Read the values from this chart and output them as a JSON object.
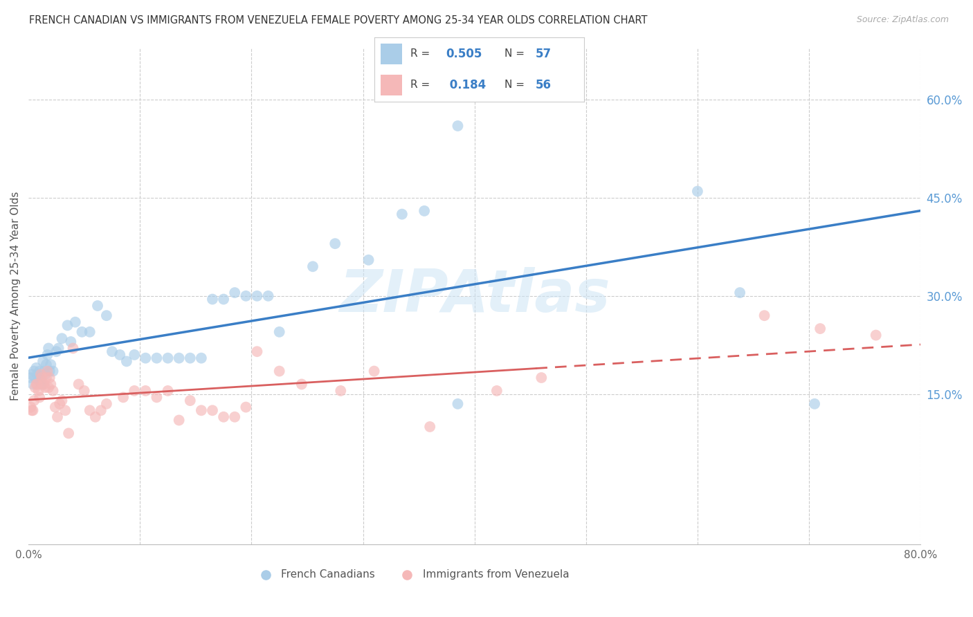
{
  "title": "FRENCH CANADIAN VS IMMIGRANTS FROM VENEZUELA FEMALE POVERTY AMONG 25-34 YEAR OLDS CORRELATION CHART",
  "source": "Source: ZipAtlas.com",
  "ylabel": "Female Poverty Among 25-34 Year Olds",
  "watermark": "ZIPAtlas",
  "xlim": [
    0.0,
    0.8
  ],
  "ylim": [
    -0.08,
    0.68
  ],
  "xtick_positions": [
    0.0,
    0.1,
    0.2,
    0.3,
    0.4,
    0.5,
    0.6,
    0.7,
    0.8
  ],
  "xtick_labels": [
    "0.0%",
    "",
    "",
    "",
    "",
    "",
    "",
    "",
    "80.0%"
  ],
  "ytick_vals_right": [
    0.15,
    0.3,
    0.45,
    0.6
  ],
  "ytick_labels_right": [
    "15.0%",
    "30.0%",
    "45.0%",
    "60.0%"
  ],
  "blue_R": "0.505",
  "blue_N": "57",
  "pink_R": "0.184",
  "pink_N": "56",
  "blue_scatter_color": "#aacde8",
  "pink_scatter_color": "#f5b8b8",
  "blue_line_color": "#3a7ec6",
  "pink_line_color": "#d95f5f",
  "grid_color": "#cccccc",
  "title_color": "#333333",
  "right_tick_color": "#5b9bd5",
  "blue_x": [
    0.002,
    0.003,
    0.004,
    0.005,
    0.006,
    0.007,
    0.008,
    0.009,
    0.01,
    0.011,
    0.012,
    0.013,
    0.014,
    0.015,
    0.016,
    0.017,
    0.018,
    0.019,
    0.02,
    0.022,
    0.025,
    0.027,
    0.03,
    0.035,
    0.038,
    0.042,
    0.048,
    0.055,
    0.062,
    0.07,
    0.075,
    0.082,
    0.088,
    0.095,
    0.105,
    0.115,
    0.125,
    0.135,
    0.145,
    0.155,
    0.165,
    0.175,
    0.185,
    0.195,
    0.205,
    0.215,
    0.225,
    0.255,
    0.275,
    0.305,
    0.335,
    0.355,
    0.385,
    0.385,
    0.6,
    0.638,
    0.705
  ],
  "blue_y": [
    0.175,
    0.18,
    0.165,
    0.185,
    0.175,
    0.19,
    0.18,
    0.17,
    0.185,
    0.17,
    0.165,
    0.2,
    0.185,
    0.18,
    0.195,
    0.21,
    0.22,
    0.185,
    0.195,
    0.185,
    0.215,
    0.22,
    0.235,
    0.255,
    0.23,
    0.26,
    0.245,
    0.245,
    0.285,
    0.27,
    0.215,
    0.21,
    0.2,
    0.21,
    0.205,
    0.205,
    0.205,
    0.205,
    0.205,
    0.205,
    0.295,
    0.295,
    0.305,
    0.3,
    0.3,
    0.3,
    0.245,
    0.345,
    0.38,
    0.355,
    0.425,
    0.43,
    0.135,
    0.56,
    0.46,
    0.305,
    0.135
  ],
  "pink_x": [
    0.002,
    0.003,
    0.004,
    0.005,
    0.006,
    0.007,
    0.008,
    0.009,
    0.01,
    0.011,
    0.012,
    0.013,
    0.014,
    0.015,
    0.016,
    0.017,
    0.018,
    0.019,
    0.02,
    0.022,
    0.024,
    0.026,
    0.028,
    0.03,
    0.033,
    0.036,
    0.04,
    0.045,
    0.05,
    0.055,
    0.06,
    0.065,
    0.07,
    0.085,
    0.095,
    0.105,
    0.115,
    0.125,
    0.135,
    0.145,
    0.155,
    0.165,
    0.175,
    0.185,
    0.195,
    0.205,
    0.225,
    0.245,
    0.28,
    0.31,
    0.36,
    0.42,
    0.46,
    0.66,
    0.71,
    0.76
  ],
  "pink_y": [
    0.13,
    0.125,
    0.125,
    0.14,
    0.16,
    0.165,
    0.165,
    0.155,
    0.145,
    0.18,
    0.175,
    0.165,
    0.165,
    0.16,
    0.175,
    0.185,
    0.16,
    0.175,
    0.165,
    0.155,
    0.13,
    0.115,
    0.135,
    0.14,
    0.125,
    0.09,
    0.22,
    0.165,
    0.155,
    0.125,
    0.115,
    0.125,
    0.135,
    0.145,
    0.155,
    0.155,
    0.145,
    0.155,
    0.11,
    0.14,
    0.125,
    0.125,
    0.115,
    0.115,
    0.13,
    0.215,
    0.185,
    0.165,
    0.155,
    0.185,
    0.1,
    0.155,
    0.175,
    0.27,
    0.25,
    0.24
  ],
  "pink_solid_xlim": [
    0.0,
    0.455
  ],
  "pink_dash_xlim": [
    0.455,
    0.8
  ]
}
